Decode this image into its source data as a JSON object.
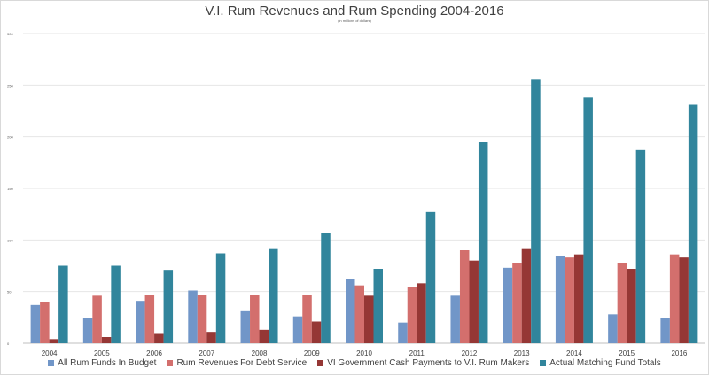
{
  "chart_data": {
    "type": "bar",
    "title": "V.I. Rum Revenues and Rum Spending 2004-2016",
    "subtitle": "(in millions of dollars)",
    "xlabel": "",
    "ylabel": "",
    "ylim": [
      0,
      300
    ],
    "yticks": [
      "0",
      "50",
      "100",
      "150",
      "200",
      "250",
      "300"
    ],
    "grid": true,
    "legend_position": "bottom",
    "categories": [
      "2004",
      "2005",
      "2006",
      "2007",
      "2008",
      "2009",
      "2010",
      "2011",
      "2012",
      "2013",
      "2014",
      "2015",
      "2016"
    ],
    "series": [
      {
        "name": "All Rum Funds In Budget",
        "color": "#7196c8",
        "values": [
          37,
          24,
          41,
          51,
          31,
          26,
          62,
          20,
          46,
          73,
          84,
          28,
          24
        ]
      },
      {
        "name": "Rum Revenues For Debt Service",
        "color": "#d36f6d",
        "values": [
          40,
          46,
          47,
          47,
          47,
          47,
          56,
          54,
          90,
          78,
          83,
          78,
          86
        ]
      },
      {
        "name": "VI Government Cash Payments to V.I. Rum Makers",
        "color": "#953735",
        "values": [
          4,
          6,
          9,
          11,
          13,
          21,
          46,
          58,
          80,
          92,
          86,
          72,
          83
        ]
      },
      {
        "name": "Actual Matching Fund Totals",
        "color": "#31859c",
        "values": [
          75,
          75,
          71,
          87,
          92,
          107,
          72,
          127,
          195,
          256,
          238,
          187,
          231
        ]
      }
    ]
  }
}
